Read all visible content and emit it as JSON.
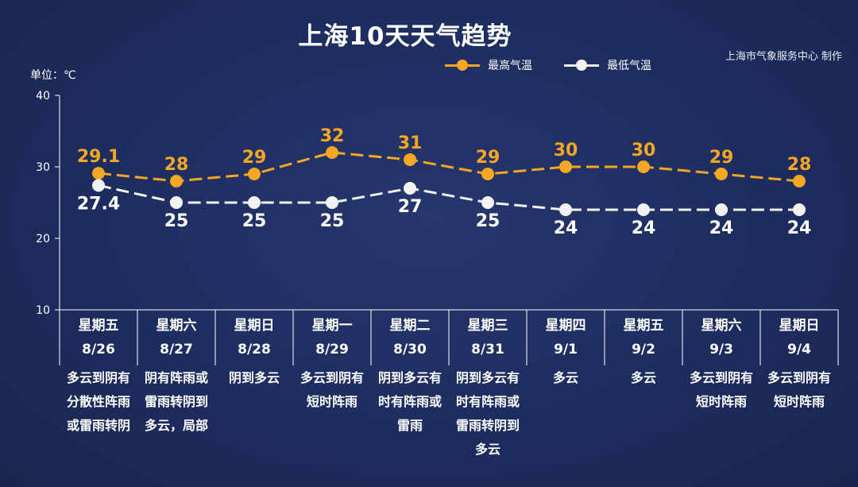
{
  "title": "上海10天天气趋势",
  "credit": "上海市气象服务中心 制作",
  "unit_label": "单位：℃",
  "legend": [
    {
      "label": "最高气温",
      "color": "#f5a623"
    },
    {
      "label": "最低气温",
      "color": "#f2f2f2"
    }
  ],
  "days": [
    {
      "weekday": "星期五",
      "date": "8/26",
      "weather": "多云到阴有分散性阵雨或雷雨转阴"
    },
    {
      "weekday": "星期六",
      "date": "8/27",
      "weather": "阴有阵雨或雷雨转阴到多云，局部"
    },
    {
      "weekday": "星期日",
      "date": "8/28",
      "weather": "阴到多云"
    },
    {
      "weekday": "星期一",
      "date": "8/29",
      "weather": "多云到阴有短时阵雨"
    },
    {
      "weekday": "星期二",
      "date": "8/30",
      "weather": "阴到多云有时有阵雨或雷雨"
    },
    {
      "weekday": "星期三",
      "date": "8/31",
      "weather": "阴到多云有时有阵雨或雷雨转阴到多云"
    },
    {
      "weekday": "星期四",
      "date": "9/1",
      "weather": "多云"
    },
    {
      "weekday": "星期五",
      "date": "9/2",
      "weather": "多云"
    },
    {
      "weekday": "星期六",
      "date": "9/3",
      "weather": "多云到阴有短时阵雨"
    },
    {
      "weekday": "星期日",
      "date": "9/4",
      "weather": "多云到阴有短时阵雨"
    }
  ],
  "chart_data": {
    "type": "line",
    "title": "上海10天天气趋势",
    "ylabel": "单位：℃",
    "ylim": [
      10,
      40
    ],
    "yticks": [
      10,
      20,
      30,
      40
    ],
    "categories": [
      "8/26",
      "8/27",
      "8/28",
      "8/29",
      "8/30",
      "8/31",
      "9/1",
      "9/2",
      "9/3",
      "9/4"
    ],
    "series": [
      {
        "name": "最高气温",
        "color": "#f5a623",
        "values": [
          29.1,
          28,
          29,
          32,
          31,
          29,
          30,
          30,
          29,
          28
        ],
        "labels": [
          "29.1",
          "28",
          "29",
          "32",
          "31",
          "29",
          "30",
          "30",
          "29",
          "28"
        ]
      },
      {
        "name": "最低气温",
        "color": "#f2f2f2",
        "values": [
          27.4,
          25,
          25,
          25,
          27,
          25,
          24,
          24,
          24,
          24
        ],
        "labels": [
          "27.4",
          "25",
          "25",
          "25",
          "27",
          "25",
          "24",
          "24",
          "24",
          "24"
        ]
      }
    ],
    "legend_position": "top-right",
    "grid": false
  }
}
